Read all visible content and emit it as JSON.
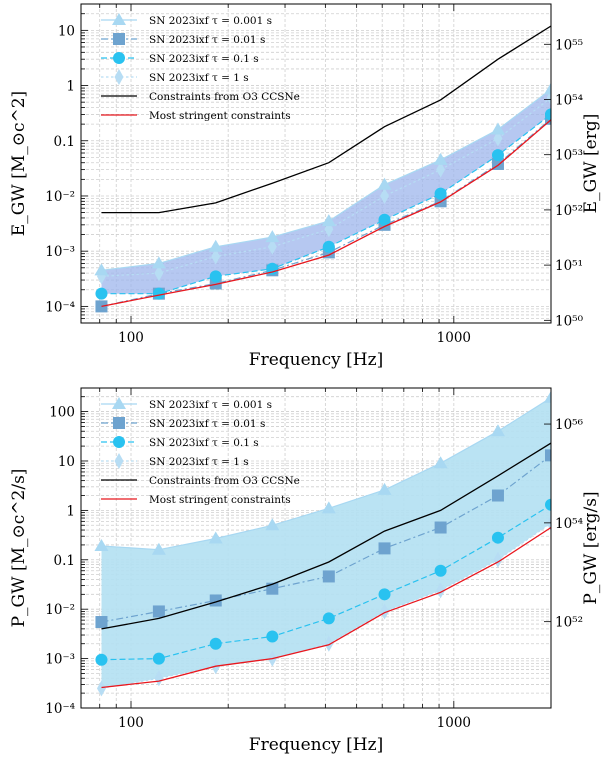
{
  "chart_data": [
    {
      "type": "line",
      "panel": "top",
      "title": "",
      "xlabel": "Frequency [Hz]",
      "ylabel": "E_GW [M_⊙c^2]",
      "ylabel_right": "E_GW [erg]",
      "xscale": "log",
      "yscale": "log",
      "xlim": [
        70,
        2000
      ],
      "ylim": [
        5e-05,
        30
      ],
      "grid": true,
      "legend_position": "top-left",
      "x_ticks": [
        {
          "value": 100,
          "label": "100"
        },
        {
          "value": 1000,
          "label": "1000"
        }
      ],
      "y_ticks": [
        {
          "value": 0.0001,
          "label": "10⁻⁴"
        },
        {
          "value": 0.001,
          "label": "10⁻³"
        },
        {
          "value": 0.01,
          "label": "10⁻²"
        },
        {
          "value": 0.1,
          "label": "0.1"
        },
        {
          "value": 1,
          "label": "1"
        },
        {
          "value": 10,
          "label": "10"
        }
      ],
      "y2_ticks": [
        {
          "value": 5.59e-05,
          "label": "10⁵⁰"
        },
        {
          "value": 0.000559,
          "label": "10⁵¹"
        },
        {
          "value": 0.00559,
          "label": "10⁵²"
        },
        {
          "value": 0.0559,
          "label": "10⁵³"
        },
        {
          "value": 0.559,
          "label": "10⁵⁴"
        },
        {
          "value": 5.59,
          "label": "10⁵⁵"
        }
      ],
      "x": [
        81,
        122,
        183,
        274,
        410,
        610,
        910,
        1370,
        2000
      ],
      "band": {
        "upper": "SN 2023ixf τ = 0.001 s",
        "lower": "SN 2023ixf τ = 0.1 s"
      },
      "series": [
        {
          "name": "SN 2023ixf τ = 0.001 s",
          "marker": "triangle",
          "color": "#a8d8f2",
          "values": [
            0.00045,
            0.0006,
            0.0012,
            0.0018,
            0.0035,
            0.016,
            0.045,
            0.16,
            0.85
          ]
        },
        {
          "name": "SN 2023ixf τ = 0.01 s",
          "marker": "square",
          "color": "#6ea3cf",
          "values": [
            0.0001,
            0.00017,
            0.00026,
            0.00045,
            0.00095,
            0.003,
            0.008,
            0.038,
            0.25
          ]
        },
        {
          "name": "SN 2023ixf τ = 0.1 s",
          "marker": "circle",
          "color": "#29c2f0",
          "values": [
            0.00017,
            0.00017,
            0.00035,
            0.00048,
            0.0012,
            0.0037,
            0.011,
            0.055,
            0.3
          ]
        },
        {
          "name": "SN 2023ixf τ = 1 s",
          "marker": "diamond",
          "color": "#b7ddf4",
          "values": [
            0.00035,
            0.0004,
            0.0008,
            0.0012,
            0.0025,
            0.01,
            0.03,
            0.11,
            0.6
          ]
        },
        {
          "name": "Constraints from O3 CCSNe",
          "marker": "none",
          "color": "#000000",
          "values": [
            0.005,
            0.005,
            0.0075,
            0.017,
            0.04,
            0.18,
            0.55,
            3.0,
            12.0
          ]
        },
        {
          "name": "Most stringent constraints",
          "marker": "none",
          "color": "#e8171e",
          "values": [
            0.0001,
            0.00016,
            0.00025,
            0.00042,
            0.00085,
            0.0028,
            0.0078,
            0.036,
            0.24
          ]
        }
      ]
    },
    {
      "type": "line",
      "panel": "bottom",
      "title": "",
      "xlabel": "Frequency [Hz]",
      "ylabel": "P_GW [M_⊙c^2/s]",
      "ylabel_right": "P_GW [erg/s]",
      "xscale": "log",
      "yscale": "log",
      "xlim": [
        70,
        2000
      ],
      "ylim": [
        0.0001,
        300
      ],
      "grid": true,
      "legend_position": "top-left",
      "x_ticks": [
        {
          "value": 100,
          "label": "100"
        },
        {
          "value": 1000,
          "label": "1000"
        }
      ],
      "y_ticks": [
        {
          "value": 0.0001,
          "label": "10⁻⁴"
        },
        {
          "value": 0.001,
          "label": "10⁻³"
        },
        {
          "value": 0.01,
          "label": "10⁻²"
        },
        {
          "value": 0.1,
          "label": "0.1"
        },
        {
          "value": 1,
          "label": "1"
        },
        {
          "value": 10,
          "label": "10"
        },
        {
          "value": 100,
          "label": "100"
        }
      ],
      "y2_ticks": [
        {
          "value": 0.00559,
          "label": "10⁵²"
        },
        {
          "value": 0.559,
          "label": "10⁵⁴"
        },
        {
          "value": 55.9,
          "label": "10⁵⁶"
        }
      ],
      "x": [
        81,
        122,
        183,
        274,
        410,
        610,
        910,
        1370,
        2000
      ],
      "band": {
        "upper": "SN 2023ixf τ = 0.001 s",
        "lower": "SN 2023ixf τ = 1 s"
      },
      "series": [
        {
          "name": "SN 2023ixf τ = 0.001 s",
          "marker": "triangle",
          "color": "#a8d8f2",
          "values": [
            0.19,
            0.16,
            0.27,
            0.5,
            1.1,
            2.6,
            9,
            40,
            190
          ]
        },
        {
          "name": "SN 2023ixf τ = 0.01 s",
          "marker": "square",
          "color": "#6ea3cf",
          "values": [
            0.0055,
            0.009,
            0.015,
            0.026,
            0.046,
            0.17,
            0.45,
            2,
            13
          ]
        },
        {
          "name": "SN 2023ixf τ = 0.1 s",
          "marker": "circle",
          "color": "#29c2f0",
          "values": [
            0.00095,
            0.001,
            0.002,
            0.0028,
            0.0065,
            0.02,
            0.06,
            0.28,
            1.3
          ]
        },
        {
          "name": "SN 2023ixf τ = 1 s",
          "marker": "diamond",
          "color": "#b7ddf4",
          "values": [
            0.00025,
            0.0004,
            0.0007,
            0.001,
            0.002,
            0.009,
            0.024,
            0.1,
            0.55
          ]
        },
        {
          "name": "Constraints from O3 CCSNe",
          "marker": "none",
          "color": "#000000",
          "values": [
            0.004,
            0.0065,
            0.014,
            0.032,
            0.09,
            0.38,
            1.0,
            5,
            23
          ]
        },
        {
          "name": "Most stringent constraints",
          "marker": "none",
          "color": "#e8171e",
          "values": [
            0.00026,
            0.00035,
            0.0007,
            0.001,
            0.0019,
            0.0085,
            0.022,
            0.09,
            0.45
          ]
        }
      ]
    }
  ]
}
